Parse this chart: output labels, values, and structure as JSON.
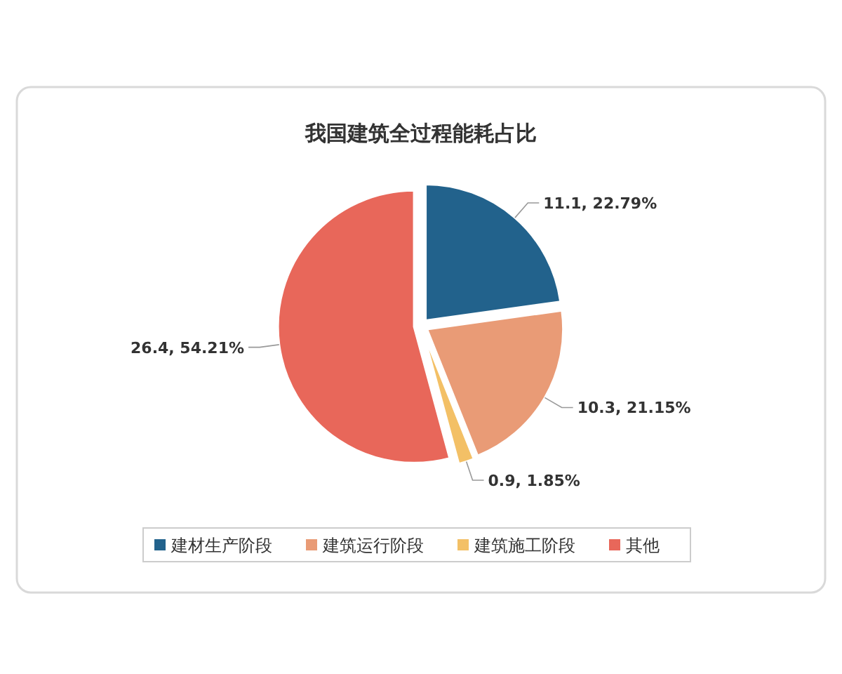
{
  "chart_data": {
    "type": "pie",
    "title": "我国建筑全过程能耗占比",
    "categories": [
      "建材生产阶段",
      "建筑运行阶段",
      "建筑施工阶段",
      "其他"
    ],
    "values": [
      11.1,
      10.3,
      0.9,
      26.4
    ],
    "colors": [
      "#22628c",
      "#e99b76",
      "#f3c066",
      "#e8675a"
    ],
    "value_labels": [
      "11.1, 22.79%",
      "10.3, 21.15%",
      "0.9, 1.85%",
      "26.4, 54.21%"
    ],
    "legend": "bottom"
  }
}
